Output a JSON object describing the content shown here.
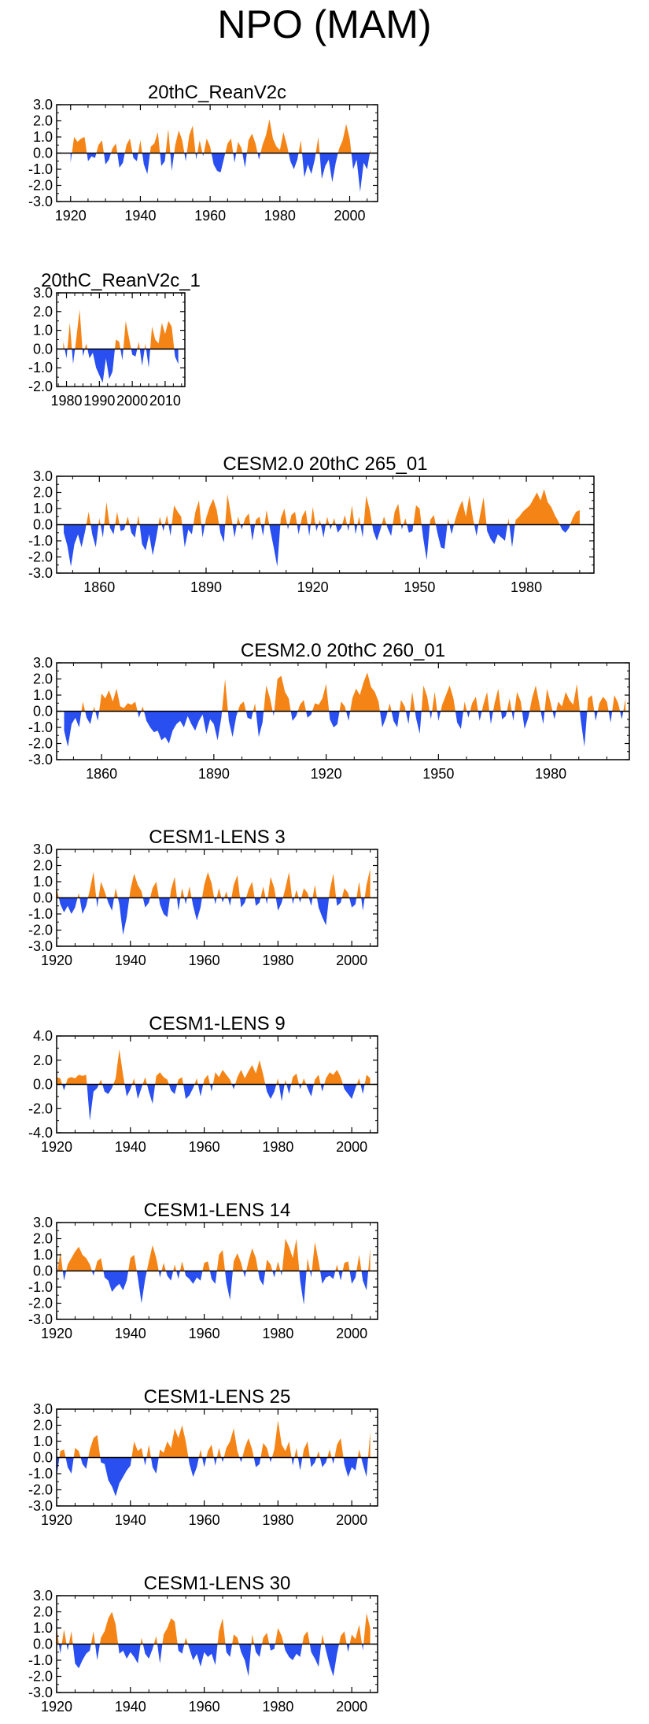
{
  "figure": {
    "title": "NPO (MAM)",
    "colors": {
      "positive": "#f58416",
      "negative": "#2a4ff0",
      "axis": "#000000"
    }
  },
  "chart_data": [
    {
      "type": "area",
      "title": "20thC_ReanV2c",
      "x_start": 1920,
      "x_end": 2006,
      "xlim": [
        1916,
        2008
      ],
      "ylim": [
        -3,
        3
      ],
      "yticks": [
        "3.0",
        "2.0",
        "1.0",
        "0.0",
        "-1.0",
        "-2.0",
        "-3.0"
      ],
      "xticks": [
        1920,
        1940,
        1960,
        1980,
        2000
      ],
      "xtick_labels": [
        "1920",
        "1940",
        "1960",
        "1980",
        "2000"
      ],
      "values": [
        -0.6,
        1.0,
        0.7,
        0.9,
        1.0,
        -0.5,
        -0.2,
        -0.3,
        0.5,
        0.8,
        -0.7,
        -0.4,
        0.3,
        0.6,
        -0.9,
        -0.6,
        0.5,
        0.9,
        -0.3,
        -0.5,
        0.8,
        -0.7,
        -1.3,
        0.4,
        0.6,
        1.3,
        -0.8,
        -0.5,
        1.5,
        -1.1,
        0.5,
        1.4,
        0.8,
        -0.5,
        1.1,
        1.7,
        -0.4,
        0.8,
        -0.2,
        0.9,
        0.4,
        -0.7,
        -1.1,
        -1.2,
        -0.3,
        0.6,
        0.9,
        -0.6,
        0.7,
        0.3,
        -0.9,
        0.8,
        1.2,
        0.6,
        -0.4,
        0.5,
        1.1,
        2.1,
        0.9,
        0.4,
        0.2,
        1.3,
        0.5,
        -0.5,
        -1.0,
        -0.4,
        0.8,
        -1.5,
        -0.7,
        -1.3,
        -0.4,
        1.0,
        -1.6,
        -0.8,
        -0.4,
        -1.8,
        -0.6,
        0.3,
        0.8,
        1.8,
        0.9,
        -1.0,
        -0.4,
        -2.4,
        -0.6,
        -1.0,
        0.3
      ]
    },
    {
      "type": "area",
      "title": "20thC_ReanV2c_1",
      "x_start": 1979,
      "x_end": 2014,
      "xlim": [
        1977,
        2016
      ],
      "ylim": [
        -2,
        3
      ],
      "yticks": [
        "3.0",
        "2.0",
        "1.0",
        "0.0",
        "-1.0",
        "-2.0"
      ],
      "xticks": [
        1980,
        1990,
        2000,
        2010
      ],
      "xtick_labels": [
        "1980",
        "1990",
        "2000",
        "2010"
      ],
      "values": [
        0.4,
        -0.5,
        1.4,
        -0.8,
        0.6,
        2.1,
        -0.4,
        0.3,
        -0.5,
        -0.2,
        -1.0,
        -1.4,
        -1.8,
        -0.5,
        -1.6,
        -1.2,
        0.5,
        0.4,
        -0.6,
        1.5,
        0.6,
        -0.3,
        -0.4,
        0.4,
        -0.9,
        0.3,
        -1.0,
        1.2,
        0.5,
        0.3,
        1.4,
        0.8,
        1.5,
        1.2,
        -0.4,
        -0.8
      ]
    },
    {
      "type": "area",
      "title": "CESM2.0 20thC 265_01",
      "x_start": 1850,
      "x_end": 1995,
      "xlim": [
        1848,
        1999
      ],
      "ylim": [
        -3,
        3
      ],
      "yticks": [
        "3.0",
        "2.0",
        "1.0",
        "0.0",
        "-1.0",
        "-2.0",
        "-3.0"
      ],
      "xticks": [
        1860,
        1890,
        1920,
        1950,
        1980
      ],
      "xtick_labels": [
        "1860",
        "1890",
        "1920",
        "1950",
        "1980"
      ],
      "values": [
        -0.5,
        -1.3,
        -2.6,
        -1.2,
        -0.6,
        -1.4,
        -0.4,
        0.8,
        -0.6,
        -1.4,
        0.4,
        -0.8,
        1.4,
        -0.2,
        -0.6,
        0.8,
        -0.4,
        -0.3,
        0.5,
        -0.5,
        -0.8,
        0.6,
        -1.2,
        -1.6,
        -0.6,
        -1.9,
        -0.8,
        0.5,
        -0.4,
        0.6,
        -0.7,
        1.2,
        0.8,
        0.5,
        -1.4,
        -0.3,
        -0.6,
        0.8,
        1.5,
        -0.8,
        0.4,
        1.1,
        1.6,
        0.9,
        -0.5,
        -1.1,
        1.9,
        0.6,
        -0.8,
        0.5,
        -0.3,
        0.4,
        0.7,
        -1.0,
        0.3,
        0.5,
        -0.7,
        0.9,
        -0.3,
        -1.4,
        -2.6,
        0.4,
        1.0,
        -0.3,
        0.6,
        0.8,
        -0.6,
        0.5,
        0.9,
        -0.7,
        1.1,
        -0.4,
        0.3,
        -0.8,
        0.5,
        -0.3,
        0.4,
        -0.5,
        -0.2,
        0.6,
        -0.4,
        1.2,
        -0.6,
        0.5,
        -0.8,
        1.8,
        0.9,
        -0.4,
        -1.0,
        -0.3,
        0.5,
        -0.2,
        -0.7,
        0.8,
        1.3,
        -0.3,
        0.4,
        -0.5,
        -0.4,
        1.2,
        1.0,
        -0.8,
        -2.2,
        0.3,
        0.6,
        -0.5,
        -1.4,
        -1.5,
        0.4,
        -0.6,
        0.3,
        1.0,
        1.5,
        0.5,
        1.8,
        0.4,
        -0.7,
        0.6,
        1.7,
        -0.4,
        -0.9,
        -1.2,
        -0.6,
        -0.8,
        -1.0,
        0.4,
        -1.4,
        0.3,
        0.5,
        0.8,
        1.0,
        1.2,
        1.6,
        2.0,
        1.5,
        2.2,
        1.4,
        1.1,
        0.6,
        0.2,
        -0.3,
        -0.5,
        -0.2,
        0.4,
        0.8,
        0.9
      ]
    },
    {
      "type": "area",
      "title": "CESM2.0 20thC 260_01",
      "x_start": 1850,
      "x_end": 2000,
      "xlim": [
        1848,
        2001
      ],
      "ylim": [
        -3,
        3
      ],
      "yticks": [
        "3.0",
        "2.0",
        "1.0",
        "0.0",
        "-1.0",
        "-2.0",
        "-3.0"
      ],
      "xticks": [
        1860,
        1890,
        1920,
        1950,
        1980
      ],
      "xtick_labels": [
        "1860",
        "1890",
        "1920",
        "1950",
        "1980"
      ],
      "values": [
        -1.2,
        -2.2,
        -0.8,
        -0.4,
        -1.0,
        0.6,
        -0.4,
        -0.8,
        0.3,
        -0.6,
        1.1,
        0.8,
        1.3,
        0.6,
        1.4,
        0.3,
        0.2,
        0.5,
        0.4,
        0.6,
        -0.4,
        0.3,
        -0.6,
        -1.0,
        -1.3,
        -1.2,
        -1.8,
        -1.6,
        -2.0,
        -1.2,
        -0.8,
        -0.6,
        -1.0,
        -0.3,
        -0.8,
        -1.2,
        -0.6,
        -0.2,
        -1.4,
        -0.5,
        -0.8,
        -1.8,
        -0.4,
        2.0,
        -0.6,
        -1.6,
        -0.3,
        0.4,
        0.6,
        -0.4,
        -0.5,
        0.5,
        -1.6,
        -0.7,
        1.6,
        0.8,
        -0.3,
        2.0,
        2.2,
        1.2,
        0.8,
        -0.6,
        -0.3,
        0.4,
        0.7,
        -0.4,
        -0.2,
        0.5,
        0.4,
        0.8,
        1.7,
        -0.5,
        -1.0,
        -0.8,
        0.6,
        0.3,
        -0.6,
        0.8,
        1.4,
        1.0,
        1.8,
        2.4,
        1.5,
        1.2,
        0.6,
        -1.0,
        -0.4,
        0.5,
        -0.6,
        -1.0,
        0.7,
        0.3,
        -0.8,
        1.2,
        -0.4,
        -1.4,
        1.6,
        0.9,
        -0.5,
        1.2,
        -0.6,
        0.4,
        1.0,
        1.6,
        0.8,
        -0.7,
        -1.1,
        0.6,
        -0.4,
        0.5,
        0.9,
        -0.6,
        0.4,
        1.2,
        -0.8,
        0.5,
        1.4,
        -0.5,
        -0.3,
        0.8,
        -0.6,
        1.2,
        0.6,
        -1.1,
        -0.4,
        0.8,
        1.6,
        0.4,
        -0.8,
        1.4,
        0.5,
        -0.5,
        0.6,
        0.3,
        1.2,
        0.7,
        0.4,
        1.7,
        -0.5,
        -2.2,
        0.8,
        1.0,
        -0.6,
        0.5,
        0.9,
        0.6,
        -0.7,
        1.0,
        0.5,
        -0.5,
        0.8
      ]
    },
    {
      "type": "area",
      "title": "CESM1-LENS 3",
      "x_start": 1920,
      "x_end": 2005,
      "xlim": [
        1920,
        2007
      ],
      "ylim": [
        -3,
        3
      ],
      "yticks": [
        "3.0",
        "2.0",
        "1.0",
        "0.0",
        "-1.0",
        "-2.0",
        "-3.0"
      ],
      "xticks": [
        1920,
        1940,
        1960,
        1980,
        2000
      ],
      "xtick_labels": [
        "1920",
        "1940",
        "1960",
        "1980",
        "2000"
      ],
      "values": [
        0.6,
        -0.4,
        -0.9,
        -0.5,
        -1.0,
        -0.6,
        0.3,
        -1.0,
        -0.5,
        0.5,
        1.6,
        -0.6,
        1.0,
        0.4,
        -0.3,
        -0.8,
        0.6,
        -0.4,
        -2.3,
        -1.2,
        0.5,
        1.5,
        0.8,
        0.4,
        -0.6,
        -0.3,
        0.6,
        1.0,
        -0.4,
        -1.0,
        -1.2,
        0.5,
        1.3,
        -0.8,
        0.6,
        -0.4,
        0.7,
        -0.5,
        -1.4,
        -0.6,
        0.8,
        1.6,
        0.9,
        -0.4,
        0.6,
        -0.3,
        0.4,
        -0.5,
        0.8,
        1.4,
        -0.6,
        -0.3,
        0.5,
        1.0,
        -0.5,
        -0.3,
        0.7,
        -0.4,
        1.3,
        0.6,
        -0.8,
        -0.3,
        0.6,
        1.6,
        -0.4,
        0.5,
        -0.3,
        0.6,
        0.3,
        -0.5,
        0.8,
        -0.6,
        -1.2,
        -1.7,
        0.4,
        1.5,
        -0.5,
        -0.3,
        0.6,
        0.3,
        -0.6,
        -0.4,
        1.0,
        -0.8,
        0.8,
        1.8
      ]
    },
    {
      "type": "area",
      "title": "CESM1-LENS 9",
      "x_start": 1920,
      "x_end": 2005,
      "xlim": [
        1920,
        2007
      ],
      "ylim": [
        -4,
        4
      ],
      "yticks": [
        "4.0",
        "2.0",
        "0.0",
        "-2.0",
        "-4.0"
      ],
      "xticks": [
        1920,
        1940,
        1960,
        1980,
        2000
      ],
      "xtick_labels": [
        "1920",
        "1940",
        "1960",
        "1980",
        "2000"
      ],
      "values": [
        0.6,
        0.5,
        -0.5,
        0.5,
        0.6,
        0.5,
        0.8,
        0.7,
        0.8,
        -3.0,
        -0.6,
        -0.3,
        0.4,
        -0.6,
        -0.8,
        -0.3,
        0.5,
        2.9,
        0.8,
        -1.0,
        -0.4,
        0.5,
        -1.2,
        -0.3,
        0.6,
        -0.6,
        -1.6,
        0.7,
        1.0,
        0.6,
        0.4,
        -0.5,
        -0.8,
        0.4,
        0.6,
        -1.2,
        -0.9,
        -0.3,
        0.5,
        -1.0,
        0.4,
        0.8,
        -0.6,
        1.0,
        0.6,
        1.2,
        0.8,
        0.4,
        -0.4,
        0.6,
        1.2,
        0.5,
        1.1,
        1.6,
        0.9,
        2.0,
        0.8,
        -0.6,
        -1.2,
        -0.6,
        0.5,
        -1.4,
        0.4,
        -0.8,
        0.6,
        0.9,
        -0.4,
        0.5,
        -0.3,
        -1.0,
        0.4,
        0.8,
        -0.6,
        0.5,
        1.0,
        0.8,
        1.2,
        0.6,
        -0.4,
        -0.8,
        -1.2,
        -0.3,
        0.5,
        -0.8,
        0.8,
        0.5
      ]
    },
    {
      "type": "area",
      "title": "CESM1-LENS 14",
      "x_start": 1920,
      "x_end": 2005,
      "xlim": [
        1920,
        2007
      ],
      "ylim": [
        -3,
        3
      ],
      "yticks": [
        "3.0",
        "2.0",
        "1.0",
        "0.0",
        "-1.0",
        "-2.0",
        "-3.0"
      ],
      "xticks": [
        1920,
        1940,
        1960,
        1980,
        2000
      ],
      "xtick_labels": [
        "1920",
        "1940",
        "1960",
        "1980",
        "2000"
      ],
      "values": [
        -0.4,
        1.2,
        -0.6,
        0.4,
        0.8,
        1.2,
        1.5,
        1.0,
        0.8,
        0.4,
        -0.3,
        0.6,
        0.8,
        -0.4,
        -0.6,
        -1.3,
        -1.0,
        -0.8,
        -1.2,
        -0.6,
        0.8,
        1.0,
        -0.4,
        -2.0,
        -0.5,
        0.6,
        1.6,
        0.8,
        -0.4,
        0.5,
        -0.3,
        -0.6,
        0.4,
        -0.5,
        0.6,
        -0.3,
        -0.5,
        -0.8,
        -0.4,
        -0.6,
        0.5,
        0.6,
        -0.5,
        -0.8,
        1.0,
        1.3,
        -0.7,
        -1.8,
        0.6,
        1.1,
        0.5,
        -0.4,
        0.6,
        1.4,
        0.8,
        -0.5,
        -0.9,
        0.7,
        0.4,
        -0.4,
        0.6,
        -0.3,
        2.0,
        1.5,
        0.8,
        2.0,
        -0.6,
        -2.1,
        0.8,
        -0.4,
        1.8,
        0.6,
        -0.8,
        -0.4,
        -0.3,
        -0.5,
        0.4,
        -0.6,
        0.5,
        0.6,
        -0.8,
        -0.4,
        1.0,
        -0.6,
        -1.2,
        1.4
      ]
    },
    {
      "type": "area",
      "title": "CESM1-LENS 25",
      "x_start": 1920,
      "x_end": 2005,
      "xlim": [
        1920,
        2007
      ],
      "ylim": [
        -3,
        3
      ],
      "yticks": [
        "3.0",
        "2.0",
        "1.0",
        "0.0",
        "-1.0",
        "-2.0",
        "-3.0"
      ],
      "xticks": [
        1920,
        1940,
        1960,
        1980,
        2000
      ],
      "xtick_labels": [
        "1920",
        "1940",
        "1960",
        "1980",
        "2000"
      ],
      "values": [
        -1.2,
        0.4,
        0.5,
        -0.6,
        -1.0,
        0.6,
        0.4,
        -0.4,
        -0.7,
        0.5,
        1.2,
        1.4,
        -0.3,
        -0.4,
        -1.4,
        -1.8,
        -2.4,
        -1.6,
        -1.2,
        -0.8,
        -0.5,
        1.0,
        0.4,
        0.6,
        -0.5,
        0.8,
        -0.6,
        -1.0,
        0.5,
        0.3,
        1.0,
        0.6,
        1.8,
        1.2,
        2.0,
        1.0,
        -0.4,
        -1.2,
        -0.6,
        0.5,
        -0.6,
        0.4,
        0.8,
        -0.5,
        0.6,
        -0.3,
        0.6,
        1.0,
        1.8,
        0.4,
        -0.3,
        0.6,
        1.2,
        0.5,
        -0.6,
        -0.4,
        0.9,
        0.6,
        -0.3,
        0.5,
        2.3,
        0.8,
        0.4,
        1.0,
        -0.5,
        0.6,
        -0.8,
        0.5,
        1.0,
        -0.6,
        -0.3,
        0.4,
        -0.6,
        -0.3,
        0.5,
        -0.4,
        0.8,
        1.2,
        -0.4,
        -1.2,
        -0.6,
        -0.8,
        0.5,
        -0.4,
        -1.2,
        1.6
      ]
    },
    {
      "type": "area",
      "title": "CESM1-LENS 30",
      "x_start": 1920,
      "x_end": 2005,
      "xlim": [
        1920,
        2007
      ],
      "ylim": [
        -3,
        3
      ],
      "yticks": [
        "3.0",
        "2.0",
        "1.0",
        "0.0",
        "-1.0",
        "-2.0",
        "-3.0"
      ],
      "xticks": [
        1920,
        1940,
        1960,
        1980,
        2000
      ],
      "xtick_labels": [
        "1920",
        "1940",
        "1960",
        "1980",
        "2000"
      ],
      "values": [
        1.0,
        -0.6,
        0.9,
        -0.4,
        0.8,
        -1.2,
        -1.5,
        -1.0,
        -0.6,
        -0.4,
        0.8,
        -1.0,
        0.4,
        0.8,
        1.6,
        2.0,
        1.2,
        -0.6,
        -0.4,
        -0.9,
        -0.5,
        -0.8,
        -1.2,
        0.4,
        -0.6,
        -0.9,
        -0.3,
        0.5,
        -1.2,
        0.6,
        1.0,
        1.6,
        1.4,
        -0.4,
        -0.6,
        0.4,
        -0.3,
        -1.0,
        -0.6,
        -1.4,
        -0.5,
        -0.8,
        -0.6,
        -1.3,
        0.8,
        1.6,
        -0.5,
        -0.8,
        0.6,
        0.4,
        -0.5,
        -1.0,
        -2.0,
        0.6,
        -0.5,
        -0.8,
        0.4,
        0.7,
        -0.4,
        -0.3,
        1.0,
        0.5,
        -0.4,
        -0.8,
        -1.0,
        -0.6,
        -0.8,
        0.5,
        0.8,
        -0.5,
        -0.9,
        -1.4,
        0.6,
        -0.4,
        -1.3,
        -2.0,
        -0.6,
        0.5,
        0.8,
        -0.5,
        0.6,
        0.3,
        1.2,
        -0.4,
        1.9,
        1.0
      ]
    }
  ]
}
